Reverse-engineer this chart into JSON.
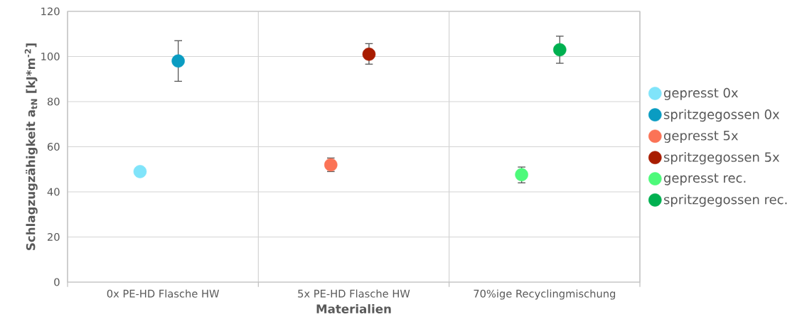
{
  "chart_data": {
    "type": "scatter",
    "xlabel": "Materialien",
    "ylabel": "Schlagzugzähigkeit a$_{tN}$ [kJ*m$^{-2}$]",
    "categories": [
      "0x PE-HD Flasche HW",
      "5x PE-HD Flasche HW",
      "70%ige Recyclingmischung"
    ],
    "ylim": [
      0,
      120
    ],
    "yticks": [
      0,
      20,
      40,
      60,
      80,
      100,
      120
    ],
    "grid": true,
    "legend": "right",
    "marker": "circle",
    "series": [
      {
        "name": "gepresst 0x",
        "color": "#80e4fa",
        "values": [
          49,
          null,
          null
        ]
      },
      {
        "name": "spritzgegossen 0x",
        "color": "#0a9cc2",
        "values": [
          98,
          null,
          null
        ],
        "errors": [
          [
            89,
            107
          ],
          null,
          null
        ]
      },
      {
        "name": "gepresst 5x",
        "color": "#fb7356",
        "values": [
          null,
          52,
          null
        ],
        "errors": [
          null,
          3,
          null
        ]
      },
      {
        "name": "spritzgegossen 5x",
        "color": "#a81c00",
        "values": [
          null,
          101,
          null
        ],
        "errors": [
          null,
          [
            96.6,
            105.7
          ],
          null
        ]
      },
      {
        "name": "gepresst rec.",
        "color": "#4dfa7a",
        "values": [
          null,
          null,
          47.6
        ],
        "errors": [
          null,
          null,
          [
            44,
            51
          ]
        ]
      },
      {
        "name": "spritzgegossen rec.",
        "color": "#00b050",
        "values": [
          null,
          null,
          103
        ],
        "errors": [
          null,
          null,
          [
            97,
            109
          ]
        ]
      }
    ]
  }
}
